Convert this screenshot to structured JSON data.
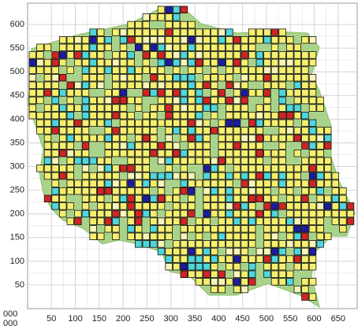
{
  "chart_data": {
    "type": "map",
    "xlim": [
      0,
      690
    ],
    "ylim": [
      0,
      645
    ],
    "xticks": [
      50,
      100,
      150,
      200,
      250,
      300,
      350,
      400,
      450,
      500,
      550,
      600,
      650
    ],
    "yticks": [
      50,
      100,
      150,
      200,
      250,
      300,
      350,
      400,
      450,
      500,
      550,
      600
    ],
    "corner_labels": [
      "000",
      "000"
    ],
    "grid": true
  }
}
